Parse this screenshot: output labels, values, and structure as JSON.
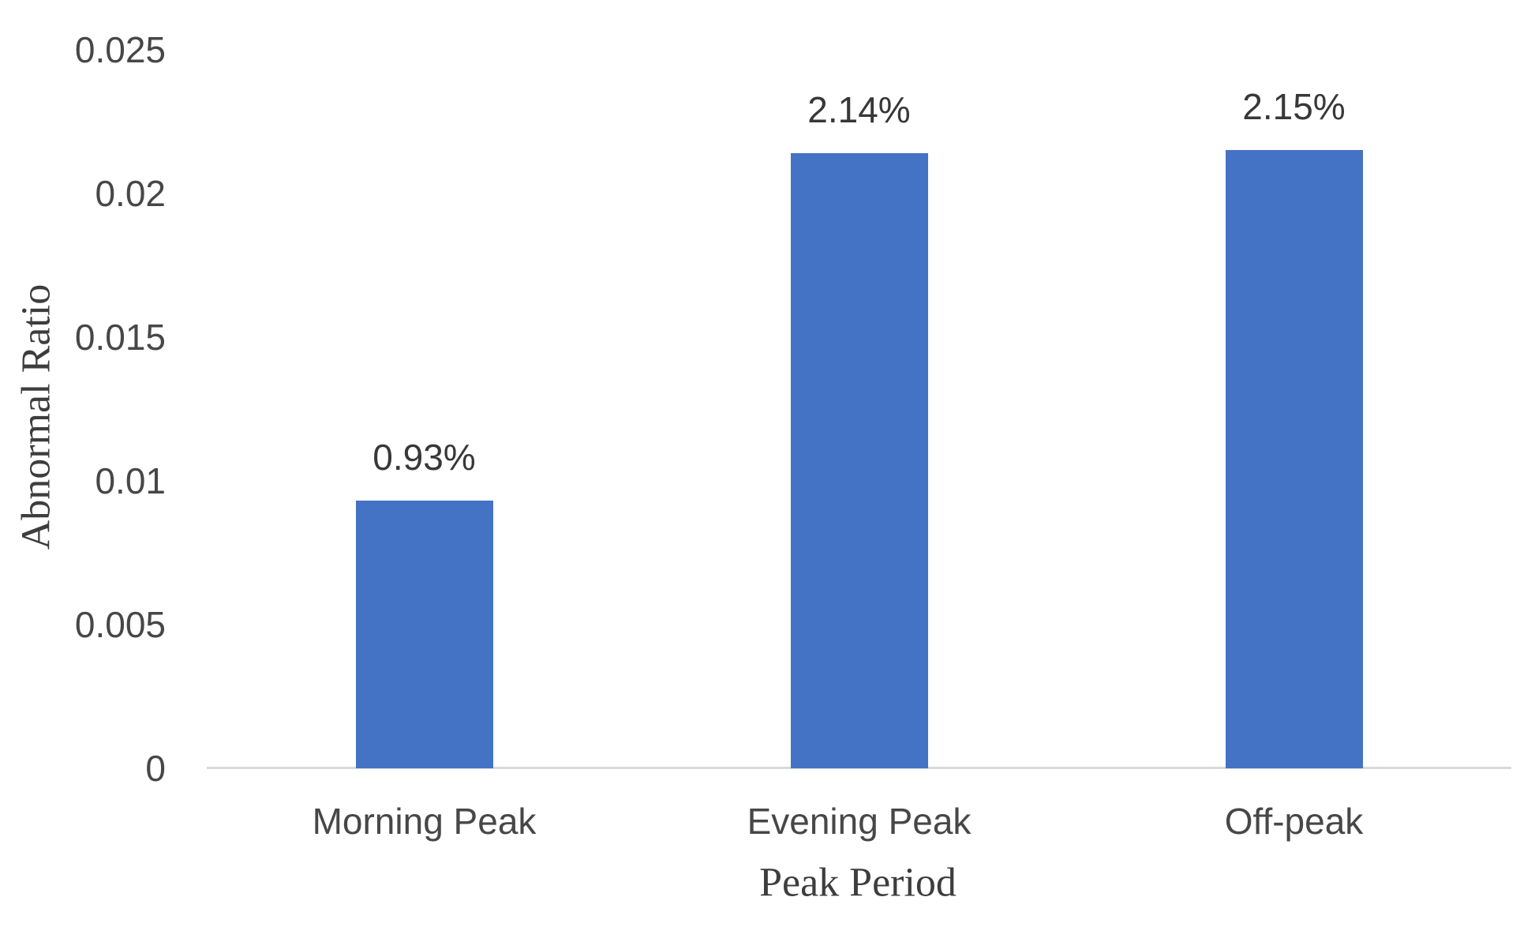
{
  "chart_data": {
    "type": "bar",
    "title": "",
    "categories": [
      "Morning Peak",
      "Evening Peak",
      "Off-peak"
    ],
    "values": [
      0.0093,
      0.0214,
      0.0215
    ],
    "data_labels": [
      "0.93%",
      "2.14%",
      "2.15%"
    ],
    "xlabel": "Peak Period",
    "ylabel": "Abnormal Ratio",
    "ylim": [
      0,
      0.025
    ],
    "yticks": [
      "0",
      "0.005",
      "0.01",
      "0.015",
      "0.02",
      "0.025"
    ],
    "grid": "off",
    "legend": "none",
    "series_count": 1,
    "bar_color": "#4472C4",
    "axis_line_color": "#D9D9D9",
    "label_color": "#474747"
  }
}
